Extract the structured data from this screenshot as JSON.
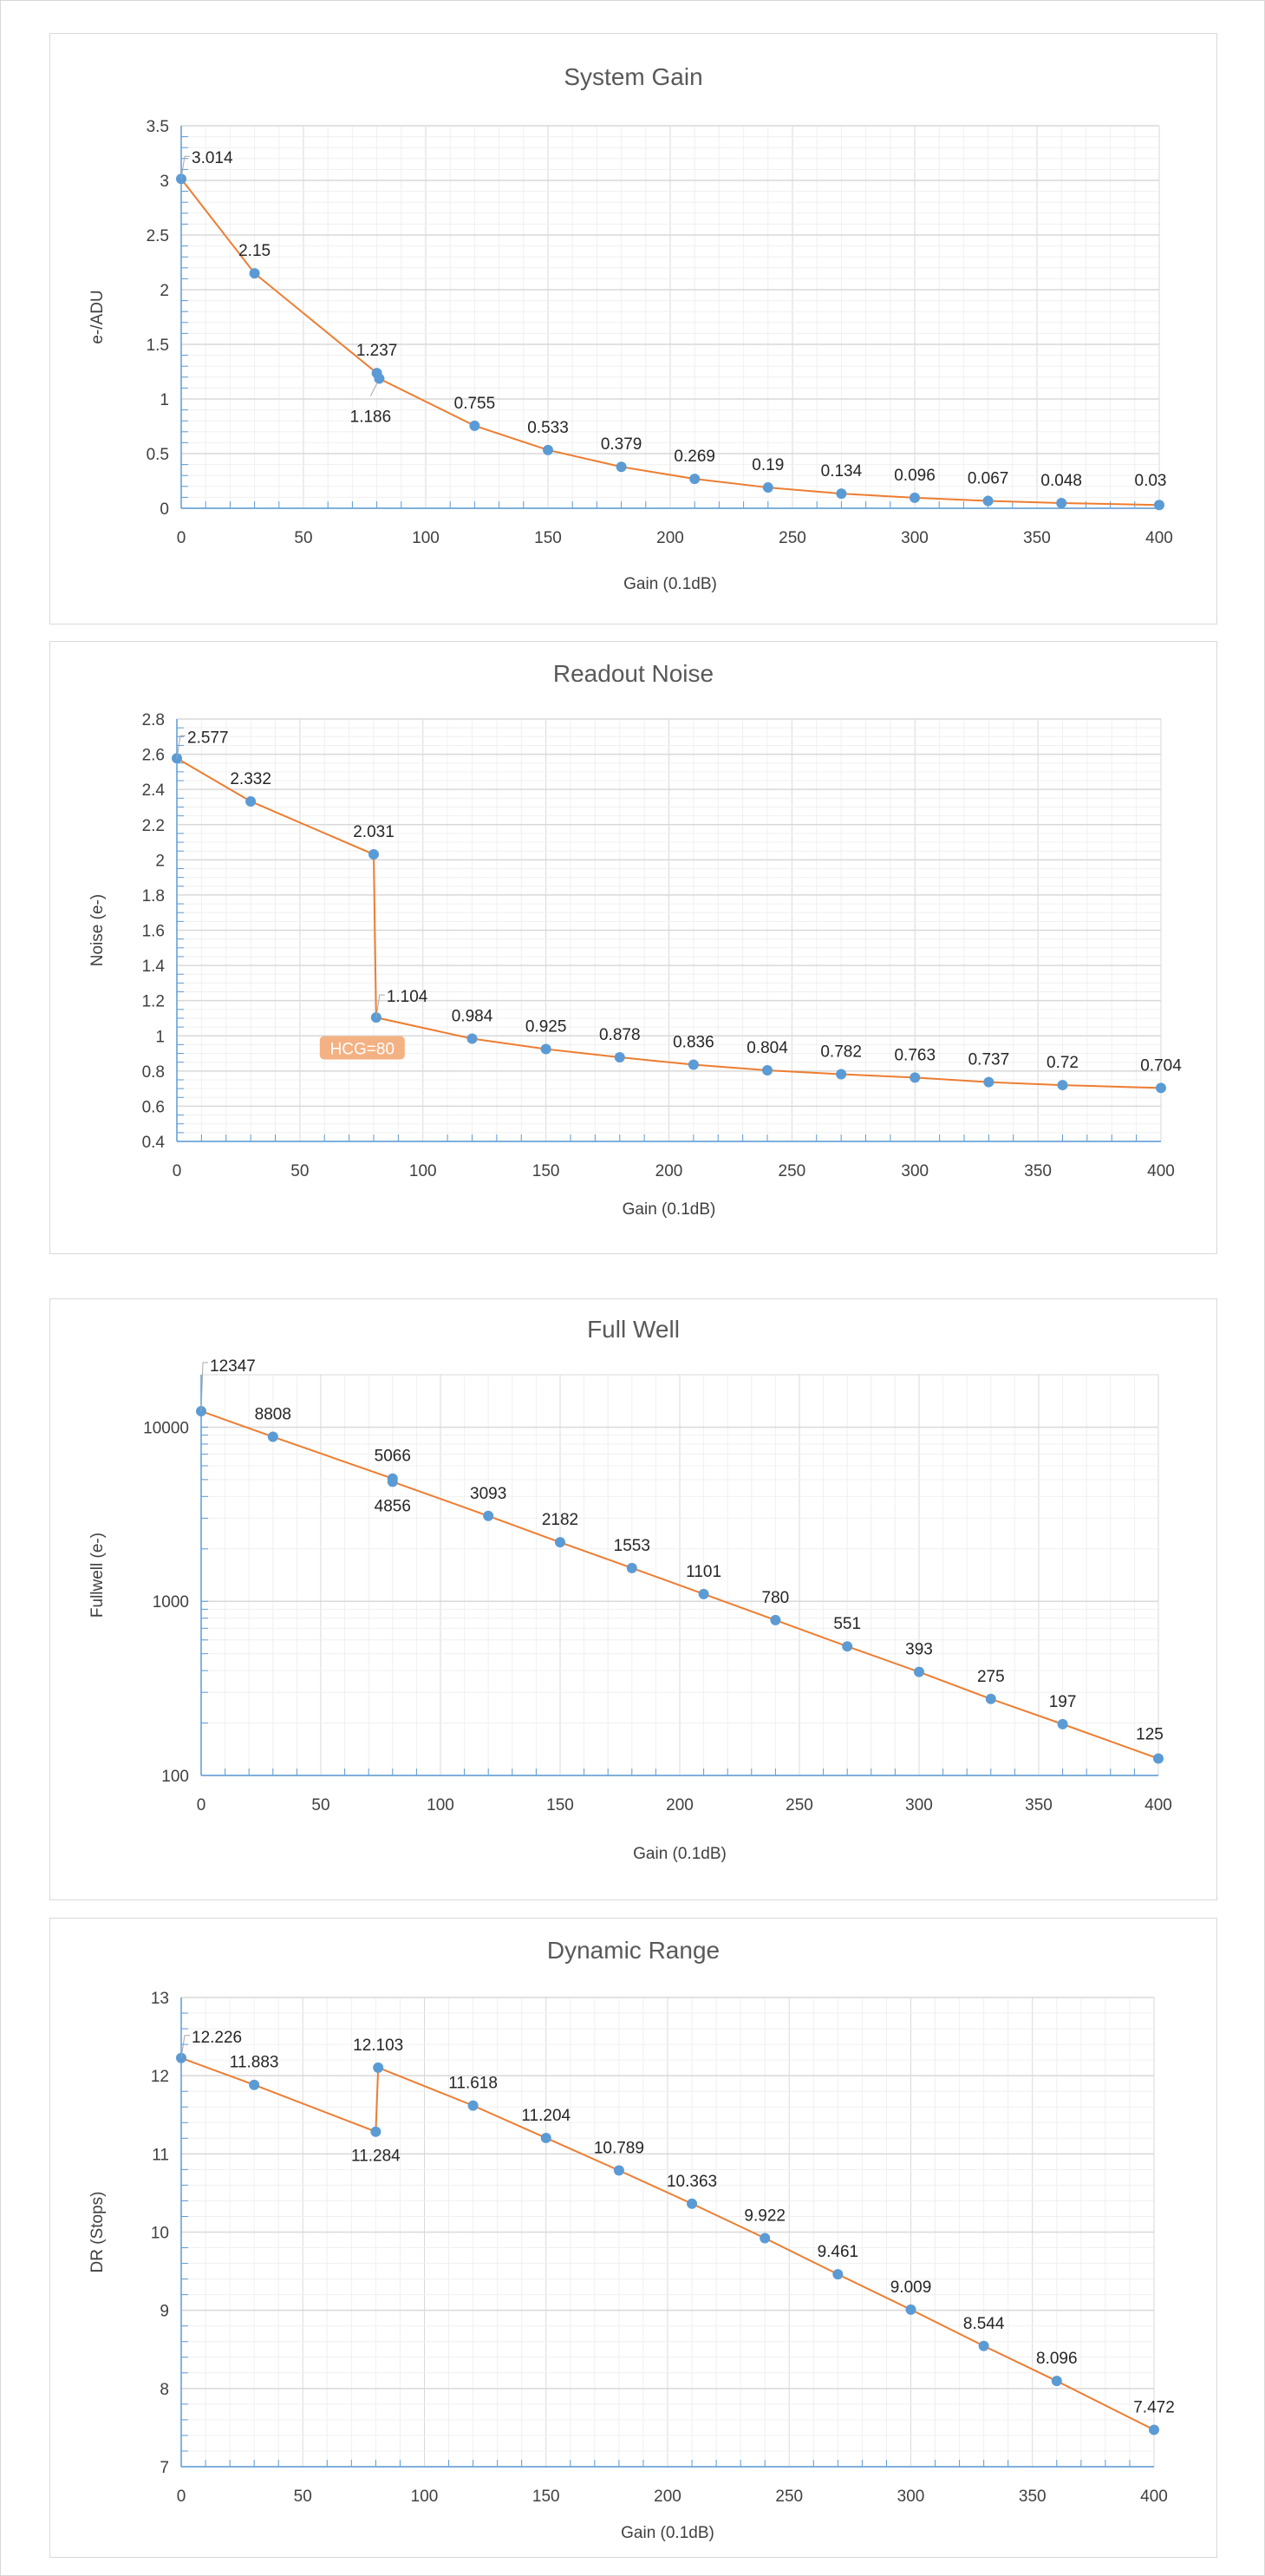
{
  "chart_data": [
    {
      "type": "line",
      "title": "System Gain",
      "xlabel": "Gain (0.1dB)",
      "ylabel": "e-/ADU",
      "xlim": [
        0,
        400
      ],
      "ylim": [
        0,
        3.5
      ],
      "yscale": "linear",
      "xticks": [
        0,
        50,
        100,
        150,
        200,
        250,
        300,
        350,
        400
      ],
      "yticks": [
        0,
        0.5,
        1,
        1.5,
        2,
        2.5,
        3,
        3.5
      ],
      "grid": true,
      "points": [
        {
          "x": 0,
          "y": 3.014,
          "label": "3.014",
          "pos": "right"
        },
        {
          "x": 30,
          "y": 2.15,
          "label": "2.15",
          "pos": "above"
        },
        {
          "x": 80,
          "y": 1.237,
          "label": "1.237",
          "pos": "above"
        },
        {
          "x": 81,
          "y": 1.186,
          "label": "1.186",
          "pos": "below-left"
        },
        {
          "x": 120,
          "y": 0.755,
          "label": "0.755",
          "pos": "above"
        },
        {
          "x": 150,
          "y": 0.533,
          "label": "0.533",
          "pos": "above"
        },
        {
          "x": 180,
          "y": 0.379,
          "label": "0.379",
          "pos": "above"
        },
        {
          "x": 210,
          "y": 0.269,
          "label": "0.269",
          "pos": "above"
        },
        {
          "x": 240,
          "y": 0.19,
          "label": "0.19",
          "pos": "above"
        },
        {
          "x": 270,
          "y": 0.134,
          "label": "0.134",
          "pos": "above"
        },
        {
          "x": 300,
          "y": 0.096,
          "label": "0.096",
          "pos": "above"
        },
        {
          "x": 330,
          "y": 0.067,
          "label": "0.067",
          "pos": "above"
        },
        {
          "x": 360,
          "y": 0.048,
          "label": "0.048",
          "pos": "above"
        },
        {
          "x": 400,
          "y": 0.03,
          "label": "0.03",
          "pos": "above-left"
        }
      ]
    },
    {
      "type": "line",
      "title": "Readout Noise",
      "xlabel": "Gain (0.1dB)",
      "ylabel": "Noise (e-)",
      "xlim": [
        0,
        400
      ],
      "ylim": [
        0.4,
        2.8
      ],
      "yscale": "linear",
      "xticks": [
        0,
        50,
        100,
        150,
        200,
        250,
        300,
        350,
        400
      ],
      "yticks": [
        0.4,
        0.6,
        0.8,
        1,
        1.2,
        1.4,
        1.6,
        1.8,
        2,
        2.2,
        2.4,
        2.6,
        2.8
      ],
      "grid": true,
      "annotation": {
        "text": "HCG=80",
        "color": "#f4b183"
      },
      "points": [
        {
          "x": 0,
          "y": 2.577,
          "label": "2.577",
          "pos": "right"
        },
        {
          "x": 30,
          "y": 2.332,
          "label": "2.332",
          "pos": "above"
        },
        {
          "x": 80,
          "y": 2.031,
          "label": "2.031",
          "pos": "above"
        },
        {
          "x": 81,
          "y": 1.104,
          "label": "1.104",
          "pos": "right"
        },
        {
          "x": 120,
          "y": 0.984,
          "label": "0.984",
          "pos": "above"
        },
        {
          "x": 150,
          "y": 0.925,
          "label": "0.925",
          "pos": "above"
        },
        {
          "x": 180,
          "y": 0.878,
          "label": "0.878",
          "pos": "above"
        },
        {
          "x": 210,
          "y": 0.836,
          "label": "0.836",
          "pos": "above"
        },
        {
          "x": 240,
          "y": 0.804,
          "label": "0.804",
          "pos": "above"
        },
        {
          "x": 270,
          "y": 0.782,
          "label": "0.782",
          "pos": "above"
        },
        {
          "x": 300,
          "y": 0.763,
          "label": "0.763",
          "pos": "above"
        },
        {
          "x": 330,
          "y": 0.737,
          "label": "0.737",
          "pos": "above"
        },
        {
          "x": 360,
          "y": 0.72,
          "label": "0.72",
          "pos": "above"
        },
        {
          "x": 400,
          "y": 0.704,
          "label": "0.704",
          "pos": "above"
        }
      ]
    },
    {
      "type": "line",
      "title": "Full Well",
      "xlabel": "Gain (0.1dB)",
      "ylabel": "Fullwell (e-)",
      "xlim": [
        0,
        400
      ],
      "ylim": [
        100,
        20000
      ],
      "yscale": "log",
      "xticks": [
        0,
        50,
        100,
        150,
        200,
        250,
        300,
        350,
        400
      ],
      "yticks": [
        100,
        1000,
        10000
      ],
      "grid": true,
      "points": [
        {
          "x": 0,
          "y": 12347,
          "label": "12347",
          "pos": "far-above-right"
        },
        {
          "x": 30,
          "y": 8808,
          "label": "8808",
          "pos": "above"
        },
        {
          "x": 80,
          "y": 5066,
          "label": "5066",
          "pos": "above"
        },
        {
          "x": 80,
          "y": 4856,
          "label": "4856",
          "pos": "below"
        },
        {
          "x": 120,
          "y": 3093,
          "label": "3093",
          "pos": "above"
        },
        {
          "x": 150,
          "y": 2182,
          "label": "2182",
          "pos": "above"
        },
        {
          "x": 180,
          "y": 1553,
          "label": "1553",
          "pos": "above"
        },
        {
          "x": 210,
          "y": 1101,
          "label": "1101",
          "pos": "above"
        },
        {
          "x": 240,
          "y": 780,
          "label": "780",
          "pos": "above"
        },
        {
          "x": 270,
          "y": 551,
          "label": "551",
          "pos": "above"
        },
        {
          "x": 300,
          "y": 393,
          "label": "393",
          "pos": "above"
        },
        {
          "x": 330,
          "y": 275,
          "label": "275",
          "pos": "above"
        },
        {
          "x": 360,
          "y": 197,
          "label": "197",
          "pos": "above"
        },
        {
          "x": 400,
          "y": 125,
          "label": "125",
          "pos": "above-left"
        }
      ]
    },
    {
      "type": "line",
      "title": "Dynamic Range",
      "xlabel": "Gain (0.1dB)",
      "ylabel": "DR (Stops)",
      "xlim": [
        0,
        400
      ],
      "ylim": [
        7,
        13
      ],
      "yscale": "linear",
      "xticks": [
        0,
        50,
        100,
        150,
        200,
        250,
        300,
        350,
        400
      ],
      "yticks": [
        7,
        8,
        9,
        10,
        11,
        12,
        13
      ],
      "grid": true,
      "points": [
        {
          "x": 0,
          "y": 12.226,
          "label": "12.226",
          "pos": "right"
        },
        {
          "x": 30,
          "y": 11.883,
          "label": "11.883",
          "pos": "above"
        },
        {
          "x": 80,
          "y": 11.284,
          "label": "11.284",
          "pos": "below"
        },
        {
          "x": 81,
          "y": 12.103,
          "label": "12.103",
          "pos": "above"
        },
        {
          "x": 120,
          "y": 11.618,
          "label": "11.618",
          "pos": "above"
        },
        {
          "x": 150,
          "y": 11.204,
          "label": "11.204",
          "pos": "above"
        },
        {
          "x": 180,
          "y": 10.789,
          "label": "10.789",
          "pos": "above"
        },
        {
          "x": 210,
          "y": 10.363,
          "label": "10.363",
          "pos": "above"
        },
        {
          "x": 240,
          "y": 9.922,
          "label": "9.922",
          "pos": "above"
        },
        {
          "x": 270,
          "y": 9.461,
          "label": "9.461",
          "pos": "above"
        },
        {
          "x": 300,
          "y": 9.009,
          "label": "9.009",
          "pos": "above"
        },
        {
          "x": 330,
          "y": 8.544,
          "label": "8.544",
          "pos": "above"
        },
        {
          "x": 360,
          "y": 8.096,
          "label": "8.096",
          "pos": "above"
        },
        {
          "x": 400,
          "y": 7.472,
          "label": "7.472",
          "pos": "above"
        }
      ]
    }
  ],
  "colors": {
    "line": "#ed7d31",
    "marker": "#5b9bd5",
    "axis": "#5b9bd5",
    "grid_major": "#d9d9d9",
    "grid_minor": "#f0f0f0"
  }
}
